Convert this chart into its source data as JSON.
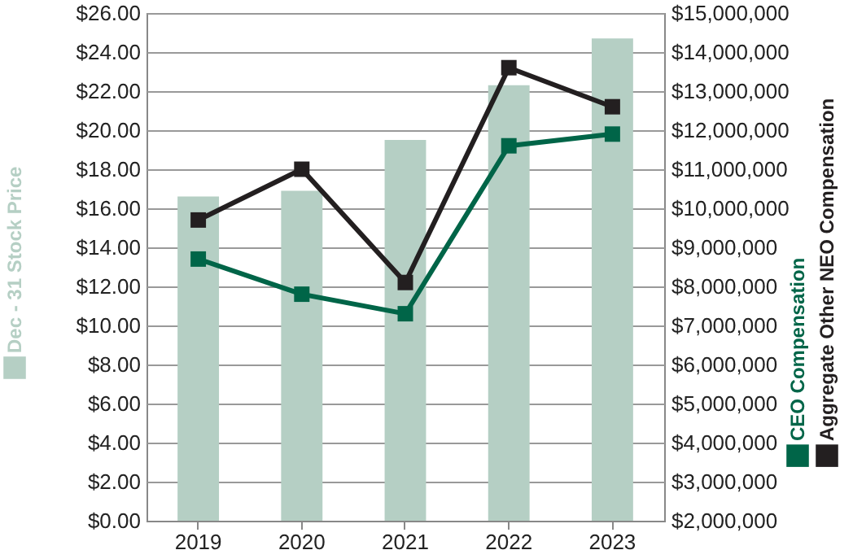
{
  "chart_data": {
    "type": "bar",
    "categories": [
      "2019",
      "2020",
      "2021",
      "2022",
      "2023"
    ],
    "series": [
      {
        "name": "Dec - 31 Stock Price",
        "color": "#b5cfc4",
        "values": [
          16.6,
          16.9,
          19.5,
          22.3,
          24.7
        ]
      },
      {
        "name": "CEO Compensation",
        "type": "line",
        "axis": "y2",
        "color": "#006548",
        "values": [
          8700000,
          7800000,
          7300000,
          11600000,
          11900000
        ]
      },
      {
        "name": "Aggregate Other NEO Compensation",
        "type": "line",
        "axis": "y2",
        "color": "#231f20",
        "values": [
          9700000,
          11000000,
          8100000,
          13600000,
          12600000
        ]
      }
    ],
    "ylim": [
      0,
      26
    ],
    "yticks": [
      {
        "value": 0,
        "label": "$0.00"
      },
      {
        "value": 2,
        "label": "$2.00"
      },
      {
        "value": 4,
        "label": "$4.00"
      },
      {
        "value": 6,
        "label": "$6.00"
      },
      {
        "value": 8,
        "label": "$8.00"
      },
      {
        "value": 10,
        "label": "$10.00"
      },
      {
        "value": 12,
        "label": "$12.00"
      },
      {
        "value": 14,
        "label": "$14.00"
      },
      {
        "value": 16,
        "label": "$16.00"
      },
      {
        "value": 18,
        "label": "$18.00"
      },
      {
        "value": 20,
        "label": "$20.00"
      },
      {
        "value": 22,
        "label": "$22.00"
      },
      {
        "value": 24,
        "label": "$24.00"
      },
      {
        "value": 26,
        "label": "$26.00"
      }
    ],
    "y2lim": [
      2000000,
      15000000
    ],
    "y2ticks": [
      {
        "value": 2000000,
        "label": "$2,000,000"
      },
      {
        "value": 3000000,
        "label": "$3,000,000"
      },
      {
        "value": 4000000,
        "label": "$4,000,000"
      },
      {
        "value": 5000000,
        "label": "$5,000,000"
      },
      {
        "value": 6000000,
        "label": "$6,000,000"
      },
      {
        "value": 7000000,
        "label": "$7,000,000"
      },
      {
        "value": 8000000,
        "label": "$8,000,000"
      },
      {
        "value": 9000000,
        "label": "$9,000,000"
      },
      {
        "value": 10000000,
        "label": "$10,000,000"
      },
      {
        "value": 11000000,
        "label": "$11,000,000"
      },
      {
        "value": 12000000,
        "label": "$12,000,000"
      },
      {
        "value": 13000000,
        "label": "$13,000,000"
      },
      {
        "value": 14000000,
        "label": "$14,000,000"
      },
      {
        "value": 15000000,
        "label": "$15,000,000"
      }
    ],
    "grid": "y",
    "marker": "square",
    "line_style": "solid",
    "legend": "left"
  }
}
